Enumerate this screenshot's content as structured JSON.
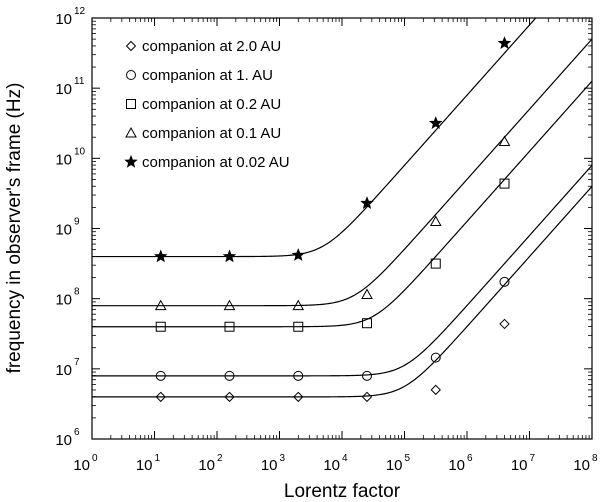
{
  "chart_data": {
    "type": "scatter",
    "xlabel": "Lorentz factor",
    "ylabel": "frequency in observer's frame (Hz)",
    "x_scale": "log",
    "y_scale": "log",
    "xlim_exp": [
      0,
      8
    ],
    "ylim_exp": [
      6,
      12
    ],
    "x_ticks": [
      {
        "base": "10",
        "exp": "0"
      },
      {
        "base": "10",
        "exp": "1"
      },
      {
        "base": "10",
        "exp": "2"
      },
      {
        "base": "10",
        "exp": "3"
      },
      {
        "base": "10",
        "exp": "4"
      },
      {
        "base": "10",
        "exp": "5"
      },
      {
        "base": "10",
        "exp": "6"
      },
      {
        "base": "10",
        "exp": "7"
      },
      {
        "base": "10",
        "exp": "8"
      }
    ],
    "y_ticks": [
      {
        "base": "10",
        "exp": "6"
      },
      {
        "base": "10",
        "exp": "7"
      },
      {
        "base": "10",
        "exp": "8"
      },
      {
        "base": "10",
        "exp": "9"
      },
      {
        "base": "10",
        "exp": "10"
      },
      {
        "base": "10",
        "exp": "11"
      },
      {
        "base": "10",
        "exp": "12"
      }
    ],
    "grid": false,
    "legend_position": "top-left",
    "series": [
      {
        "name": "companion at 2.0 AU",
        "marker": "diamond",
        "x_exp": [
          1.1,
          2.2,
          3.3,
          4.4,
          5.5,
          6.6
        ],
        "y_exp": [
          6.6,
          6.6,
          6.6,
          6.6,
          6.7,
          7.64
        ],
        "curve_flat_exp": 6.6,
        "curve_break_exp": 5.0
      },
      {
        "name": "companion at 1. AU",
        "marker": "circle",
        "x_exp": [
          1.1,
          2.2,
          3.3,
          4.4,
          5.5,
          6.6
        ],
        "y_exp": [
          6.9,
          6.9,
          6.9,
          6.9,
          7.16,
          8.24
        ],
        "curve_flat_exp": 6.9,
        "curve_break_exp": 5.0
      },
      {
        "name": "companion at 0.2 AU",
        "marker": "square",
        "x_exp": [
          1.1,
          2.2,
          3.3,
          4.4,
          5.5,
          6.6
        ],
        "y_exp": [
          7.6,
          7.6,
          7.6,
          7.65,
          8.5,
          9.64
        ],
        "curve_flat_exp": 7.6,
        "curve_break_exp": 4.5
      },
      {
        "name": "companion at 0.1 AU",
        "marker": "triangle",
        "x_exp": [
          1.1,
          2.2,
          3.3,
          4.4,
          5.5,
          6.6
        ],
        "y_exp": [
          7.9,
          7.9,
          7.9,
          8.06,
          9.1,
          10.24
        ],
        "curve_flat_exp": 7.9,
        "curve_break_exp": 4.2
      },
      {
        "name": "companion at 0.02 AU",
        "marker": "star",
        "x_exp": [
          1.1,
          2.2,
          3.3,
          4.4,
          5.5,
          6.6
        ],
        "y_exp": [
          8.6,
          8.6,
          8.62,
          9.36,
          10.5,
          11.64
        ],
        "curve_flat_exp": 8.6,
        "curve_break_exp": 3.7
      }
    ]
  }
}
